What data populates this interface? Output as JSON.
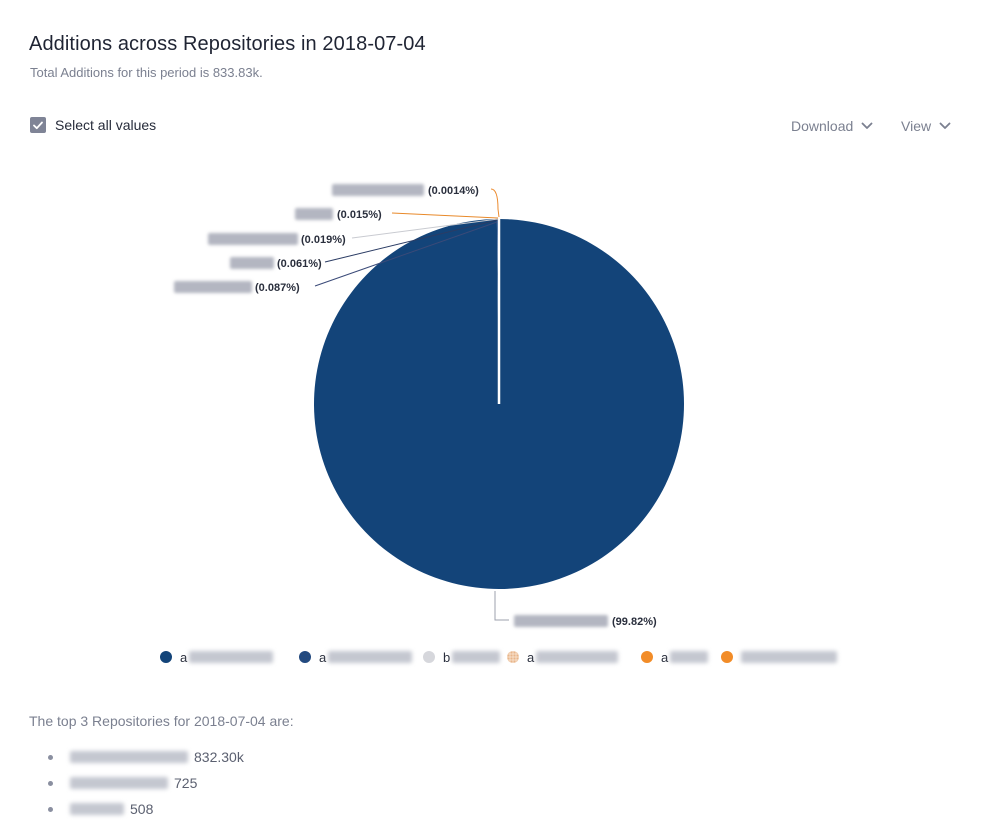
{
  "header": {
    "title": "Additions across Repositories in 2018-07-04",
    "subtitle": "Total Additions for this period is 833.83k."
  },
  "controls": {
    "select_all_label": "Select all values",
    "select_all_checked": true,
    "download_label": "Download",
    "view_label": "View"
  },
  "chart_data": {
    "type": "pie",
    "title": "Additions across Repositories in 2018-07-04",
    "slices": [
      {
        "value": 99.82,
        "label": "(99.82%)",
        "color": "#134479"
      },
      {
        "value": 0.087,
        "label": "(0.087%)",
        "color": "#1d4a87"
      },
      {
        "value": 0.061,
        "label": "(0.061%)",
        "color": "#2b3c64"
      },
      {
        "value": 0.019,
        "label": "(0.019%)",
        "color": "#cfd1d6"
      },
      {
        "value": 0.015,
        "label": "(0.015%)",
        "color": "#e88a2e"
      },
      {
        "value": 0.0014,
        "label": "(0.0014%)",
        "color": "#f08c2a"
      }
    ],
    "legend_position": "bottom"
  },
  "legend": {
    "items": [
      {
        "text": "a",
        "color": "#134479",
        "style": "solid"
      },
      {
        "text": "a",
        "color": "#1d4a87",
        "style": "dotted"
      },
      {
        "text": "b",
        "color": "#d6d7dc",
        "style": "solid"
      },
      {
        "text": "a",
        "color": "#e8b58a",
        "style": "dotted"
      },
      {
        "text": "a",
        "color": "#f28c28",
        "style": "solid"
      },
      {
        "text": "",
        "color": "#f28c28",
        "style": "solid"
      }
    ]
  },
  "top_list": {
    "heading": "The top 3 Repositories for 2018-07-04 are:",
    "items": [
      {
        "value": "832.30k"
      },
      {
        "value": "725"
      },
      {
        "value": "508"
      }
    ]
  }
}
